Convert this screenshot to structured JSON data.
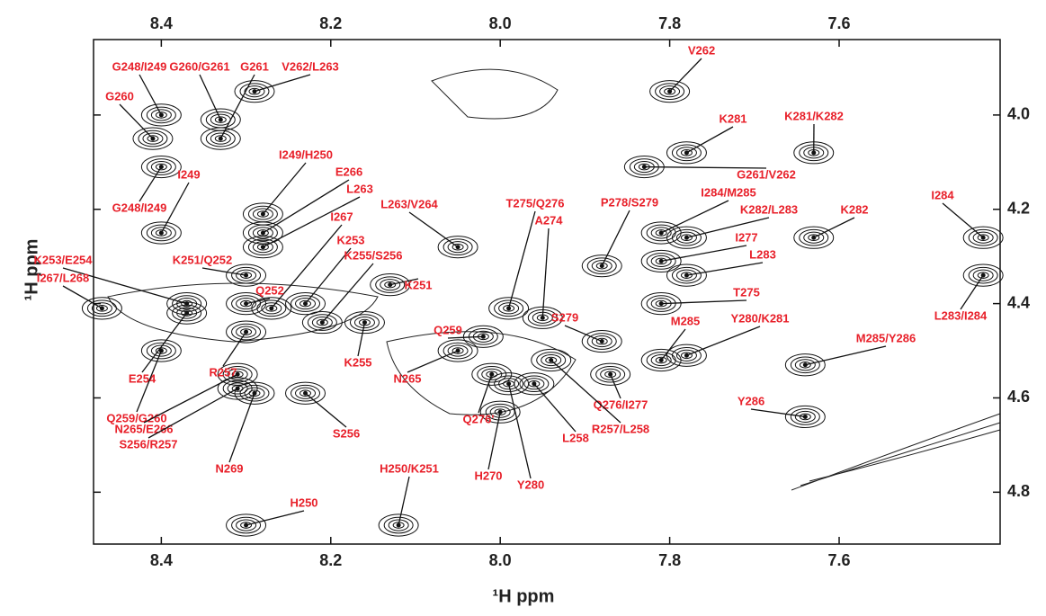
{
  "chart_data": {
    "type": "nmr-2d",
    "x_label": "¹H  ppm",
    "y_label": "¹H  ppm",
    "xlim": [
      8.48,
      7.41
    ],
    "ylim": [
      3.84,
      4.91
    ],
    "xticks": [
      8.4,
      8.2,
      {
        "value": 8,
        "label": "8.0"
      },
      7.8,
      7.6
    ],
    "yticks": [
      {
        "value": 4,
        "label": "4.0"
      },
      4.2,
      4.4,
      4.6,
      4.8
    ],
    "label_color": "#e8202a",
    "contour_color": "#111111",
    "peaks": [
      {
        "label": "G248/I249",
        "x": 8.4,
        "y": 4.0
      },
      {
        "label": "G260",
        "x": 8.41,
        "y": 4.05
      },
      {
        "label": "G260/G261",
        "x": 8.33,
        "y": 4.01
      },
      {
        "label": "G261",
        "x": 8.33,
        "y": 4.05
      },
      {
        "label": "V262/L263",
        "x": 8.29,
        "y": 3.95
      },
      {
        "label": "G248/I249",
        "x": 8.4,
        "y": 4.11
      },
      {
        "label": "I249",
        "x": 8.4,
        "y": 4.25
      },
      {
        "label": "I249/H250",
        "x": 8.28,
        "y": 4.21
      },
      {
        "label": "E266",
        "x": 8.28,
        "y": 4.25
      },
      {
        "label": "L263",
        "x": 8.28,
        "y": 4.28
      },
      {
        "label": "I267",
        "x": 8.27,
        "y": 4.41
      },
      {
        "label": "K253",
        "x": 8.23,
        "y": 4.4
      },
      {
        "label": "K255/S256",
        "x": 8.21,
        "y": 4.44
      },
      {
        "label": "K253/E254",
        "x": 8.37,
        "y": 4.4
      },
      {
        "label": "K251/Q252",
        "x": 8.3,
        "y": 4.34
      },
      {
        "label": "Q252",
        "x": 8.3,
        "y": 4.4
      },
      {
        "label": "I267/L268",
        "x": 8.47,
        "y": 4.41
      },
      {
        "label": "K251",
        "x": 8.13,
        "y": 4.36
      },
      {
        "label": "L263/V264",
        "x": 8.05,
        "y": 4.28
      },
      {
        "label": "T275/Q276",
        "x": 7.99,
        "y": 4.41
      },
      {
        "label": "A274",
        "x": 7.95,
        "y": 4.43
      },
      {
        "label": "P278/S279",
        "x": 7.88,
        "y": 4.32
      },
      {
        "label": "I284/M285",
        "x": 7.81,
        "y": 4.25
      },
      {
        "label": "K282/L283",
        "x": 7.78,
        "y": 4.26
      },
      {
        "label": "K282",
        "x": 7.63,
        "y": 4.26
      },
      {
        "label": "I284",
        "x": 7.43,
        "y": 4.26
      },
      {
        "label": "I277",
        "x": 7.81,
        "y": 4.31
      },
      {
        "label": "L283",
        "x": 7.78,
        "y": 4.34
      },
      {
        "label": "T275",
        "x": 7.81,
        "y": 4.4
      },
      {
        "label": "L283/I284",
        "x": 7.43,
        "y": 4.34
      },
      {
        "label": "Q259",
        "x": 8.02,
        "y": 4.47
      },
      {
        "label": "S279",
        "x": 7.88,
        "y": 4.48
      },
      {
        "label": "M285",
        "x": 7.81,
        "y": 4.52
      },
      {
        "label": "Y280/K281",
        "x": 7.78,
        "y": 4.51
      },
      {
        "label": "M285/Y286",
        "x": 7.64,
        "y": 4.53
      },
      {
        "label": "K255",
        "x": 8.16,
        "y": 4.44
      },
      {
        "label": "E254",
        "x": 8.37,
        "y": 4.42
      },
      {
        "label": "R257",
        "x": 8.3,
        "y": 4.46
      },
      {
        "label": "N265",
        "x": 8.05,
        "y": 4.5
      },
      {
        "label": "Q259/G260",
        "x": 8.4,
        "y": 4.5
      },
      {
        "label": "N265/E266",
        "x": 8.31,
        "y": 4.55
      },
      {
        "label": "S256/R257",
        "x": 8.31,
        "y": 4.58
      },
      {
        "label": "N269",
        "x": 8.29,
        "y": 4.59
      },
      {
        "label": "S256",
        "x": 8.23,
        "y": 4.59
      },
      {
        "label": "Q276'",
        "x": 8.01,
        "y": 4.55
      },
      {
        "label": "Q276/I277",
        "x": 7.87,
        "y": 4.55
      },
      {
        "label": "R257/L258",
        "x": 7.94,
        "y": 4.52
      },
      {
        "label": "L258",
        "x": 7.96,
        "y": 4.57
      },
      {
        "label": "H270",
        "x": 8.0,
        "y": 4.63
      },
      {
        "label": "Y280",
        "x": 7.99,
        "y": 4.57
      },
      {
        "label": "Y286",
        "x": 7.64,
        "y": 4.64
      },
      {
        "label": "H250",
        "x": 8.3,
        "y": 4.87
      },
      {
        "label": "H250/K251",
        "x": 8.12,
        "y": 4.87
      },
      {
        "label": "V262",
        "x": 7.8,
        "y": 3.95
      },
      {
        "label": "K281",
        "x": 7.78,
        "y": 4.08
      },
      {
        "label": "K281/K282",
        "x": 7.63,
        "y": 4.08
      },
      {
        "label": "G261/V262",
        "x": 7.83,
        "y": 4.11
      }
    ]
  }
}
